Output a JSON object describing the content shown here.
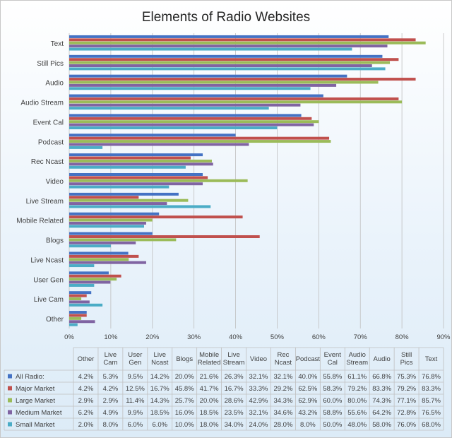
{
  "chart_data": {
    "type": "bar",
    "orientation": "horizontal",
    "title": "Elements of Radio Websites",
    "categories": [
      "Text",
      "Still Pics",
      "Audio",
      "Audio Stream",
      "Event Cal",
      "Podcast",
      "Rec Ncast",
      "Video",
      "Live Stream",
      "Mobile Related",
      "Blogs",
      "Live Ncast",
      "User Gen",
      "Live Cam",
      "Other"
    ],
    "xlim": [
      0,
      90
    ],
    "x_ticks": [
      "0%",
      "10%",
      "20%",
      "30%",
      "40%",
      "50%",
      "60%",
      "70%",
      "80%",
      "90%"
    ],
    "grid": true,
    "legend": "table-bottom",
    "series": [
      {
        "name": "All Radio:",
        "color": "#4472c4",
        "values": [
          76.8,
          75.3,
          66.8,
          61.1,
          55.8,
          40.0,
          32.1,
          32.1,
          26.3,
          21.6,
          20.0,
          14.2,
          9.5,
          5.3,
          4.2
        ]
      },
      {
        "name": "Major Market",
        "color": "#c0504d",
        "values": [
          83.3,
          79.2,
          83.3,
          79.2,
          58.3,
          62.5,
          29.2,
          33.3,
          16.7,
          41.7,
          45.8,
          16.7,
          12.5,
          4.2,
          4.2
        ]
      },
      {
        "name": "Large Market",
        "color": "#9bbb59",
        "values": [
          85.7,
          77.1,
          74.3,
          80.0,
          60.0,
          62.9,
          34.3,
          42.9,
          28.6,
          20.0,
          25.7,
          14.3,
          11.4,
          2.9,
          2.9
        ]
      },
      {
        "name": "Medium Market",
        "color": "#8064a2",
        "values": [
          76.5,
          72.8,
          64.2,
          55.6,
          58.8,
          43.2,
          34.6,
          32.1,
          23.5,
          18.5,
          16.0,
          18.5,
          9.9,
          4.9,
          6.2
        ]
      },
      {
        "name": "Small Market",
        "color": "#4bacc6",
        "values": [
          68.0,
          76.0,
          58.0,
          48.0,
          50.0,
          8.0,
          28.0,
          24.0,
          34.0,
          18.0,
          10.0,
          6.0,
          6.0,
          8.0,
          2.0
        ]
      }
    ],
    "table": {
      "columns": [
        "Other",
        "Live\nCam",
        "User\nGen",
        "Live\nNcast",
        "Blogs",
        "Mobile\nRelated",
        "Live\nStream",
        "Video",
        "Rec\nNcast",
        "Podcast",
        "Event\nCal",
        "Audio\nStream",
        "Audio",
        "Still\nPics",
        "Text"
      ],
      "rows": [
        [
          "4.2%",
          "5.3%",
          "9.5%",
          "14.2%",
          "20.0%",
          "21.6%",
          "26.3%",
          "32.1%",
          "32.1%",
          "40.0%",
          "55.8%",
          "61.1%",
          "66.8%",
          "75.3%",
          "76.8%"
        ],
        [
          "4.2%",
          "4.2%",
          "12.5%",
          "16.7%",
          "45.8%",
          "41.7%",
          "16.7%",
          "33.3%",
          "29.2%",
          "62.5%",
          "58.3%",
          "79.2%",
          "83.3%",
          "79.2%",
          "83.3%"
        ],
        [
          "2.9%",
          "2.9%",
          "11.4%",
          "14.3%",
          "25.7%",
          "20.0%",
          "28.6%",
          "42.9%",
          "34.3%",
          "62.9%",
          "60.0%",
          "80.0%",
          "74.3%",
          "77.1%",
          "85.7%"
        ],
        [
          "6.2%",
          "4.9%",
          "9.9%",
          "18.5%",
          "16.0%",
          "18.5%",
          "23.5%",
          "32.1%",
          "34.6%",
          "43.2%",
          "58.8%",
          "55.6%",
          "64.2%",
          "72.8%",
          "76.5%"
        ],
        [
          "2.0%",
          "8.0%",
          "6.0%",
          "6.0%",
          "10.0%",
          "18.0%",
          "34.0%",
          "24.0%",
          "28.0%",
          "8.0%",
          "50.0%",
          "48.0%",
          "58.0%",
          "76.0%",
          "68.0%"
        ]
      ]
    }
  }
}
